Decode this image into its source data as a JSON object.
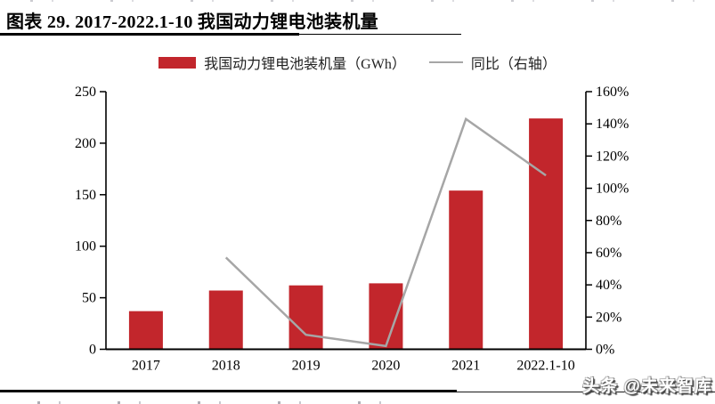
{
  "header": {
    "title": "图表 29. 2017-2022.1-10 我国动力锂电池装机量"
  },
  "legend": {
    "bar_label": "我国动力锂电池装机量（GWh）",
    "line_label": "同比（右轴）"
  },
  "watermark": "头条 @未来智库",
  "colors": {
    "bar": "#C2262C",
    "line": "#A6A6A6",
    "axis": "#000000",
    "tick_text": "#000000"
  },
  "chart_data": {
    "type": "bar",
    "combo": "bar+line",
    "title": "2017-2022.1-10 我国动力锂电池装机量",
    "categories": [
      "2017",
      "2018",
      "2019",
      "2020",
      "2021",
      "2022.1-10"
    ],
    "series": [
      {
        "name": "我国动力锂电池装机量（GWh）",
        "type": "bar",
        "axis": "left",
        "unit": "GWh",
        "values": [
          37,
          57,
          62,
          64,
          154,
          224
        ]
      },
      {
        "name": "同比（右轴）",
        "type": "line",
        "axis": "right",
        "unit": "%",
        "values": [
          null,
          57,
          9,
          2,
          143,
          108
        ]
      }
    ],
    "left_axis": {
      "min": 0,
      "max": 250,
      "step": 50,
      "tick_labels": [
        "0",
        "50",
        "100",
        "150",
        "200",
        "250"
      ]
    },
    "right_axis": {
      "min": 0,
      "max": 160,
      "step": 20,
      "tick_labels": [
        "0%",
        "20%",
        "40%",
        "60%",
        "80%",
        "100%",
        "120%",
        "140%",
        "160%"
      ]
    },
    "grid": false,
    "legend_position": "top-center"
  }
}
